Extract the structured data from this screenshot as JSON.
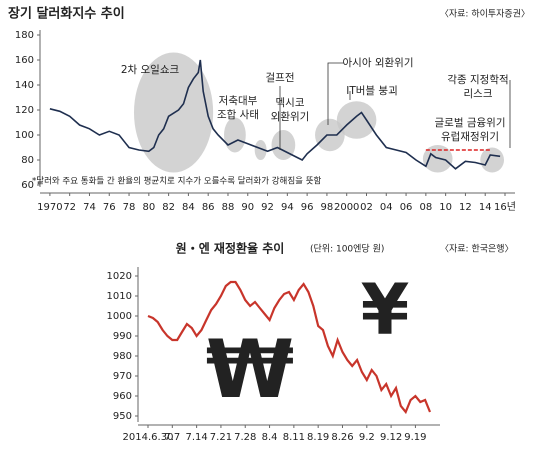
{
  "chart_data": [
    {
      "type": "line",
      "title": "장기 달러화지수 추이",
      "source": "〈자료: 하이투자증권〉",
      "footnote": "*달러와 주요 통화들 간 환율의 평균치로 지수가 오를수록 달러화가 강해짐을 뜻함",
      "annotations": [
        [
          "2차 오일쇼크"
        ],
        [
          "저축대부",
          "조합 사태"
        ],
        [
          "걸프전"
        ],
        [
          "멕시코",
          "외환위기"
        ],
        [
          "아시아 외환위기"
        ],
        [
          "IT버블 붕괴"
        ],
        [
          "각종 지정학적",
          "리스크"
        ],
        [
          "글로벌 금융위기",
          "유럽재정위기"
        ]
      ],
      "x": [
        1970,
        1971,
        1972,
        1973,
        1974,
        1975,
        1976,
        1977,
        1978,
        1979,
        1980,
        1980.5,
        1981,
        1981.5,
        1982,
        1983,
        1983.5,
        1984,
        1984.5,
        1985,
        1985.2,
        1985.5,
        1986,
        1986.5,
        1987,
        1988,
        1989,
        1990,
        1991,
        1992,
        1993,
        1994,
        1995,
        1995.5,
        1996,
        1997,
        1998,
        1999,
        2000,
        2001,
        2001.5,
        2002,
        2003,
        2004,
        2005,
        2006,
        2007,
        2008,
        2008.5,
        2009,
        2010,
        2011,
        2012,
        2013,
        2014,
        2014.5,
        2015.5
      ],
      "series": [
        {
          "name": "달러화지수",
          "color": "#1f2f4f",
          "values": [
            121,
            119,
            115,
            108,
            105,
            100,
            103,
            100,
            90,
            88,
            87,
            90,
            100,
            105,
            115,
            120,
            125,
            138,
            145,
            150,
            160,
            135,
            115,
            105,
            100,
            92,
            96,
            93,
            90,
            87,
            90,
            86,
            82,
            80,
            85,
            92,
            100,
            100,
            108,
            115,
            118,
            112,
            100,
            90,
            88,
            86,
            80,
            75,
            85,
            82,
            80,
            73,
            79,
            78,
            76,
            84,
            83
          ]
        }
      ],
      "xlim": [
        1969,
        2016
      ],
      "xticks": [
        {
          "value": 1970,
          "label": "1970"
        },
        {
          "value": 1972,
          "label": "72"
        },
        {
          "value": 1974,
          "label": "74"
        },
        {
          "value": 1976,
          "label": "76"
        },
        {
          "value": 1978,
          "label": "78"
        },
        {
          "value": 1980,
          "label": "80"
        },
        {
          "value": 1982,
          "label": "82"
        },
        {
          "value": 1984,
          "label": "84"
        },
        {
          "value": 1986,
          "label": "86"
        },
        {
          "value": 1988,
          "label": "88"
        },
        {
          "value": 1990,
          "label": "90"
        },
        {
          "value": 1992,
          "label": "92"
        },
        {
          "value": 1994,
          "label": "94"
        },
        {
          "value": 1996,
          "label": "96"
        },
        {
          "value": 1998,
          "label": "98"
        },
        {
          "value": 2000,
          "label": "2000"
        },
        {
          "value": 2002,
          "label": "02"
        },
        {
          "value": 2004,
          "label": "04"
        },
        {
          "value": 2006,
          "label": "06"
        },
        {
          "value": 2008,
          "label": "08"
        },
        {
          "value": 2010,
          "label": "10"
        },
        {
          "value": 2012,
          "label": "12"
        },
        {
          "value": 2014,
          "label": "14"
        },
        {
          "value": 2016,
          "label": "16년"
        }
      ],
      "ylim": [
        60,
        180
      ],
      "yticks": [
        60,
        80,
        100,
        120,
        140,
        160,
        180
      ]
    },
    {
      "type": "line",
      "title": "원・엔 재정환율 추이",
      "unit": "(단위: 100엔당 원)",
      "source": "〈자료: 한국은행〉",
      "annotations": [
        [
          "₩"
        ],
        [
          "¥"
        ]
      ],
      "categories": [
        "2014.6.30",
        null,
        null,
        null,
        null,
        "7.7",
        null,
        null,
        null,
        null,
        "7.14",
        null,
        null,
        null,
        null,
        "7.21",
        null,
        null,
        null,
        null,
        "7.28",
        null,
        null,
        null,
        null,
        "8.4",
        null,
        null,
        null,
        null,
        "8.11",
        null,
        null,
        null,
        null,
        "8.19",
        null,
        null,
        null,
        null,
        "8.26",
        null,
        null,
        null,
        null,
        "9.2",
        null,
        null,
        null,
        null,
        "9.12",
        null,
        null,
        null,
        null,
        "9.19",
        null,
        null,
        null
      ],
      "series": [
        {
          "name": "원・엔 재정환율",
          "color": "#c8352b",
          "values": [
            1000,
            999,
            997,
            993,
            990,
            988,
            988,
            992,
            996,
            994,
            990,
            993,
            998,
            1003,
            1006,
            1010,
            1015,
            1017,
            1017,
            1013,
            1008,
            1005,
            1007,
            1004,
            1001,
            998,
            1004,
            1008,
            1011,
            1012,
            1008,
            1013,
            1016,
            1012,
            1005,
            995,
            993,
            985,
            980,
            988,
            982,
            978,
            975,
            978,
            972,
            968,
            973,
            970,
            963,
            966,
            960,
            964,
            955,
            952,
            958,
            960,
            957,
            958,
            952
          ]
        }
      ],
      "ylim": [
        948,
        1022
      ],
      "yticks": [
        950,
        960,
        970,
        980,
        990,
        1000,
        1010,
        1020
      ]
    }
  ]
}
